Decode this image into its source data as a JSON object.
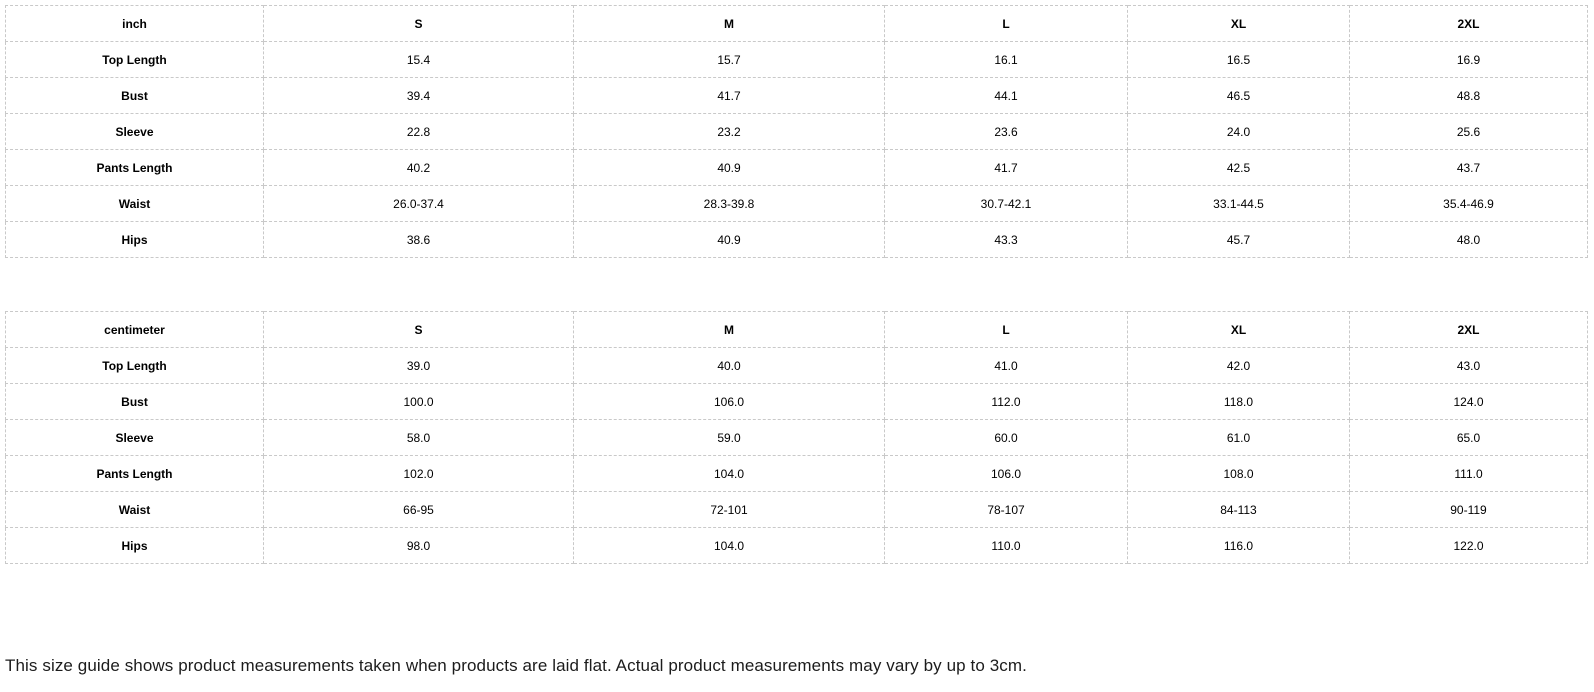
{
  "tables": [
    {
      "unit": "inch",
      "columns": [
        "S",
        "M",
        "L",
        "XL",
        "2XL"
      ],
      "rows": [
        {
          "label": "Top Length",
          "values": [
            "15.4",
            "15.7",
            "16.1",
            "16.5",
            "16.9"
          ]
        },
        {
          "label": "Bust",
          "values": [
            "39.4",
            "41.7",
            "44.1",
            "46.5",
            "48.8"
          ]
        },
        {
          "label": "Sleeve",
          "values": [
            "22.8",
            "23.2",
            "23.6",
            "24.0",
            "25.6"
          ]
        },
        {
          "label": "Pants Length",
          "values": [
            "40.2",
            "40.9",
            "41.7",
            "42.5",
            "43.7"
          ]
        },
        {
          "label": "Waist",
          "values": [
            "26.0-37.4",
            "28.3-39.8",
            "30.7-42.1",
            "33.1-44.5",
            "35.4-46.9"
          ]
        },
        {
          "label": "Hips",
          "values": [
            "38.6",
            "40.9",
            "43.3",
            "45.7",
            "48.0"
          ]
        }
      ]
    },
    {
      "unit": "centimeter",
      "columns": [
        "S",
        "M",
        "L",
        "XL",
        "2XL"
      ],
      "rows": [
        {
          "label": "Top Length",
          "values": [
            "39.0",
            "40.0",
            "41.0",
            "42.0",
            "43.0"
          ]
        },
        {
          "label": "Bust",
          "values": [
            "100.0",
            "106.0",
            "112.0",
            "118.0",
            "124.0"
          ]
        },
        {
          "label": "Sleeve",
          "values": [
            "58.0",
            "59.0",
            "60.0",
            "61.0",
            "65.0"
          ]
        },
        {
          "label": "Pants Length",
          "values": [
            "102.0",
            "104.0",
            "106.0",
            "108.0",
            "111.0"
          ]
        },
        {
          "label": "Waist",
          "values": [
            "66-95",
            "72-101",
            "78-107",
            "84-113",
            "90-119"
          ]
        },
        {
          "label": "Hips",
          "values": [
            "98.0",
            "104.0",
            "110.0",
            "116.0",
            "122.0"
          ]
        }
      ]
    }
  ],
  "footer": {
    "note": "This size guide shows product measurements taken when products are laid flat. Actual product measurements may vary by up to 3cm."
  },
  "colors": {
    "border": "#c9c9c9",
    "table_text": "#000000",
    "note_text": "#1c1c1c",
    "background": "#ffffff"
  }
}
